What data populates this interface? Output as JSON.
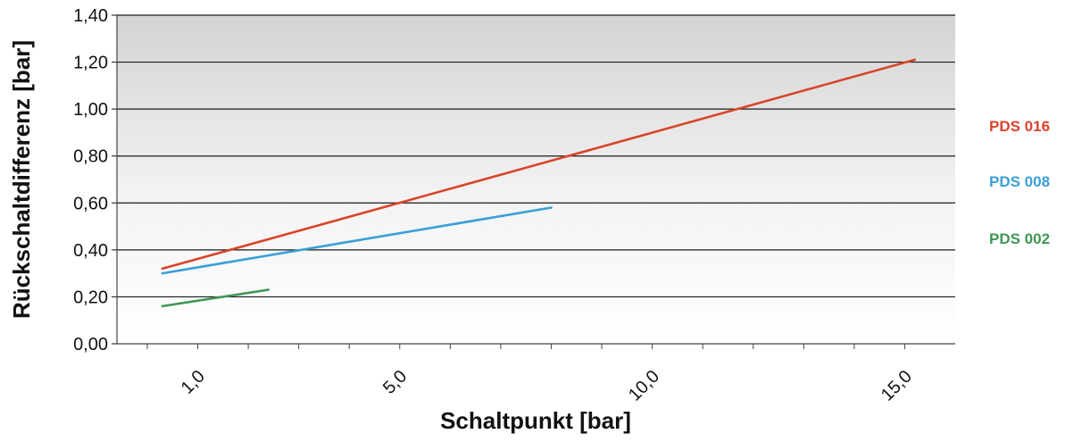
{
  "chart_data": {
    "type": "line",
    "xlabel": "Schaltpunkt [bar]",
    "ylabel": "Rückschaltdifferenz [bar]",
    "xlim": [
      -0.6,
      16.0
    ],
    "ylim": [
      0,
      1.4
    ],
    "x_ticks": [
      1.0,
      5.0,
      10.0,
      15.0
    ],
    "x_tick_labels": [
      "1,0",
      "5,0",
      "10,0",
      "15,0"
    ],
    "y_ticks": [
      0,
      0.2,
      0.4,
      0.6,
      0.8,
      1.0,
      1.2,
      1.4
    ],
    "y_tick_labels": [
      "0,00",
      "0,20",
      "0,40",
      "0,60",
      "0,80",
      "1,00",
      "1,20",
      "1,40"
    ],
    "grid": true,
    "legend_position": "right",
    "series": [
      {
        "name": "PDS 016",
        "color": "#d9442a",
        "x": [
          0.3,
          15.2
        ],
        "y": [
          0.32,
          1.21
        ]
      },
      {
        "name": "PDS 008",
        "color": "#3a9fd6",
        "x": [
          0.3,
          8.0
        ],
        "y": [
          0.3,
          0.58
        ]
      },
      {
        "name": "PDS 002",
        "color": "#3e9655",
        "x": [
          0.3,
          2.4
        ],
        "y": [
          0.16,
          0.23
        ]
      }
    ]
  }
}
